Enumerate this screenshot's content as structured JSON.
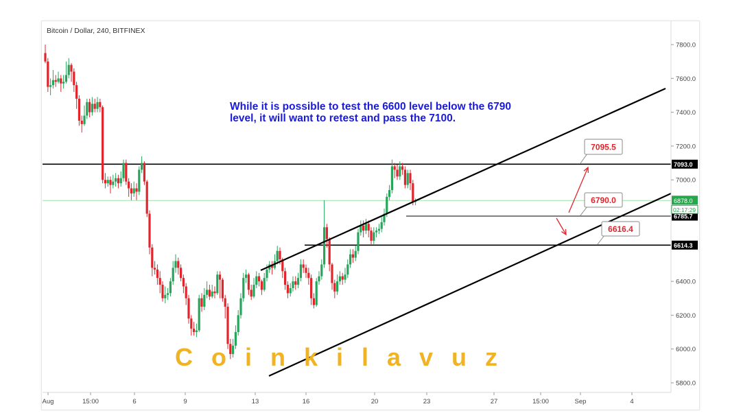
{
  "header": {
    "title": "Bitcoin / Dollar, 240, BITFINEX"
  },
  "annotation": {
    "line1": "While it is possible to test the 6600 level below the 6790",
    "line2": "level, it will want to retest and pass the 7100."
  },
  "watermark": {
    "text": "Coinkilavuz"
  },
  "colors": {
    "up": "#26a65b",
    "down": "#e0262c",
    "trendline": "#000000",
    "current_price_line": "#9fe0a8",
    "callout_text": "#e0262c",
    "annotation": "#1a1adb",
    "watermark": "#f0b323"
  },
  "chart_data": {
    "type": "candlestick",
    "title": "Bitcoin / Dollar, 240, BITFINEX",
    "ylim": [
      5750,
      7850
    ],
    "y_ticks": [
      "7800.0",
      "7600.0",
      "7400.0",
      "7200.0",
      "7000.0",
      "6400.0",
      "6200.0",
      "6000.0",
      "5800.0"
    ],
    "x_ticks": [
      "Aug",
      "15:00",
      "6",
      "9",
      "13",
      "16",
      "20",
      "23",
      "27",
      "15:00",
      "Sep",
      "4"
    ],
    "current_price": {
      "value": 6878.0,
      "label": "6878.0",
      "countdown": "02:17:29"
    },
    "horizontal_levels": [
      {
        "value": 7093.0,
        "label": "7093.0"
      },
      {
        "value": 6785.7,
        "label": "6785.7"
      },
      {
        "value": 6614.3,
        "label": "6614.3"
      }
    ],
    "callouts": [
      {
        "label": "7095.5",
        "value": 7095.5
      },
      {
        "label": "6790.0",
        "value": 6790.0
      },
      {
        "label": "6616.4",
        "value": 6616.4
      }
    ],
    "channel": {
      "upper": [
        [
          -10,
          6460
        ],
        [
          236,
          7545
        ]
      ],
      "lower": [
        [
          -10,
          5845
        ],
        [
          251,
          6925
        ]
      ]
    },
    "arrows": [
      {
        "from": [
          187,
          6810
        ],
        "to": [
          197,
          7085
        ],
        "direction": "up"
      },
      {
        "from": [
          185,
          6780
        ],
        "to": [
          190,
          6680
        ],
        "direction": "down"
      }
    ],
    "bars": [
      [
        7750,
        7700,
        7800,
        7690
      ],
      [
        7700,
        7550,
        7720,
        7520
      ],
      [
        7550,
        7560,
        7600,
        7500
      ],
      [
        7560,
        7590,
        7650,
        7540
      ],
      [
        7590,
        7580,
        7620,
        7550
      ],
      [
        7580,
        7600,
        7640,
        7570
      ],
      [
        7600,
        7570,
        7620,
        7520
      ],
      [
        7570,
        7580,
        7620,
        7540
      ],
      [
        7580,
        7620,
        7700,
        7570
      ],
      [
        7620,
        7680,
        7720,
        7600
      ],
      [
        7680,
        7640,
        7690,
        7580
      ],
      [
        7640,
        7560,
        7660,
        7520
      ],
      [
        7560,
        7480,
        7580,
        7420
      ],
      [
        7480,
        7350,
        7500,
        7320
      ],
      [
        7350,
        7330,
        7380,
        7280
      ],
      [
        7330,
        7380,
        7440,
        7320
      ],
      [
        7380,
        7460,
        7480,
        7360
      ],
      [
        7460,
        7400,
        7480,
        7370
      ],
      [
        7400,
        7450,
        7490,
        7380
      ],
      [
        7450,
        7420,
        7480,
        7400
      ],
      [
        7420,
        7460,
        7490,
        7400
      ],
      [
        7460,
        7430,
        7480,
        7400
      ],
      [
        7430,
        7000,
        7440,
        6980
      ],
      [
        7000,
        6980,
        7040,
        6950
      ],
      [
        6980,
        7000,
        7020,
        6960
      ],
      [
        7000,
        6970,
        7020,
        6920
      ],
      [
        6970,
        6990,
        7030,
        6950
      ],
      [
        6990,
        7010,
        7040,
        6960
      ],
      [
        7010,
        6980,
        7030,
        6950
      ],
      [
        6980,
        7010,
        7050,
        6960
      ],
      [
        7010,
        7100,
        7120,
        6990
      ],
      [
        7100,
        6990,
        7120,
        6970
      ],
      [
        6990,
        6950,
        7010,
        6900
      ],
      [
        6950,
        6920,
        6980,
        6880
      ],
      [
        6920,
        6950,
        6990,
        6900
      ],
      [
        6950,
        6930,
        6980,
        6880
      ],
      [
        6930,
        7060,
        7080,
        6910
      ],
      [
        7060,
        7100,
        7140,
        7040
      ],
      [
        7100,
        6990,
        7110,
        6970
      ],
      [
        6990,
        6800,
        7000,
        6780
      ],
      [
        6800,
        6600,
        6820,
        6560
      ],
      [
        6600,
        6480,
        6620,
        6430
      ],
      [
        6480,
        6470,
        6520,
        6440
      ],
      [
        6470,
        6420,
        6500,
        6380
      ],
      [
        6420,
        6380,
        6460,
        6330
      ],
      [
        6380,
        6300,
        6400,
        6280
      ],
      [
        6300,
        6320,
        6370,
        6270
      ],
      [
        6320,
        6330,
        6360,
        6290
      ],
      [
        6330,
        6400,
        6420,
        6310
      ],
      [
        6400,
        6480,
        6520,
        6380
      ],
      [
        6480,
        6520,
        6560,
        6450
      ],
      [
        6520,
        6480,
        6540,
        6440
      ],
      [
        6480,
        6420,
        6500,
        6400
      ],
      [
        6420,
        6370,
        6440,
        6330
      ],
      [
        6370,
        6300,
        6390,
        6260
      ],
      [
        6300,
        6180,
        6320,
        6150
      ],
      [
        6180,
        6120,
        6200,
        6080
      ],
      [
        6120,
        6100,
        6160,
        6080
      ],
      [
        6100,
        6110,
        6150,
        6070
      ],
      [
        6110,
        6300,
        6320,
        6100
      ],
      [
        6300,
        6250,
        6330,
        6220
      ],
      [
        6250,
        6320,
        6360,
        6230
      ],
      [
        6320,
        6350,
        6400,
        6300
      ],
      [
        6350,
        6310,
        6380,
        6290
      ],
      [
        6310,
        6340,
        6380,
        6300
      ],
      [
        6340,
        6330,
        6370,
        6300
      ],
      [
        6330,
        6440,
        6460,
        6320
      ],
      [
        6440,
        6410,
        6460,
        6300
      ],
      [
        6410,
        6300,
        6420,
        6280
      ],
      [
        6300,
        6250,
        6320,
        6180
      ],
      [
        6250,
        6030,
        6270,
        6000
      ],
      [
        6030,
        5970,
        6060,
        5940
      ],
      [
        5970,
        6020,
        6060,
        5950
      ],
      [
        6020,
        6100,
        6140,
        6000
      ],
      [
        6100,
        6200,
        6230,
        6080
      ],
      [
        6200,
        6300,
        6330,
        6180
      ],
      [
        6300,
        6420,
        6450,
        6280
      ],
      [
        6420,
        6440,
        6470,
        6390
      ],
      [
        6440,
        6350,
        6450,
        6320
      ],
      [
        6350,
        6310,
        6380,
        6290
      ],
      [
        6310,
        6380,
        6420,
        6300
      ],
      [
        6380,
        6430,
        6460,
        6360
      ],
      [
        6430,
        6400,
        6450,
        6370
      ],
      [
        6400,
        6350,
        6410,
        6320
      ],
      [
        6350,
        6420,
        6450,
        6340
      ],
      [
        6420,
        6470,
        6500,
        6400
      ],
      [
        6470,
        6500,
        6520,
        6450
      ],
      [
        6500,
        6480,
        6520,
        6440
      ],
      [
        6480,
        6520,
        6560,
        6470
      ],
      [
        6520,
        6580,
        6610,
        6500
      ],
      [
        6580,
        6530,
        6600,
        6500
      ],
      [
        6530,
        6460,
        6540,
        6420
      ],
      [
        6460,
        6380,
        6480,
        6350
      ],
      [
        6380,
        6330,
        6400,
        6300
      ],
      [
        6330,
        6360,
        6390,
        6310
      ],
      [
        6360,
        6400,
        6430,
        6340
      ],
      [
        6400,
        6380,
        6430,
        6350
      ],
      [
        6380,
        6420,
        6450,
        6360
      ],
      [
        6420,
        6500,
        6530,
        6400
      ],
      [
        6500,
        6480,
        6530,
        6450
      ],
      [
        6480,
        6450,
        6500,
        6420
      ],
      [
        6450,
        6420,
        6480,
        6380
      ],
      [
        6420,
        6300,
        6440,
        6260
      ],
      [
        6300,
        6260,
        6330,
        6240
      ],
      [
        6260,
        6400,
        6420,
        6250
      ],
      [
        6400,
        6430,
        6460,
        6380
      ],
      [
        6430,
        6500,
        6530,
        6410
      ],
      [
        6500,
        6720,
        6880,
        6480
      ],
      [
        6720,
        6650,
        6740,
        6600
      ],
      [
        6650,
        6500,
        6660,
        6460
      ],
      [
        6500,
        6390,
        6510,
        6350
      ],
      [
        6390,
        6340,
        6410,
        6300
      ],
      [
        6340,
        6400,
        6440,
        6320
      ],
      [
        6400,
        6430,
        6460,
        6380
      ],
      [
        6430,
        6410,
        6450,
        6380
      ],
      [
        6410,
        6440,
        6480,
        6390
      ],
      [
        6440,
        6500,
        6530,
        6420
      ],
      [
        6500,
        6560,
        6590,
        6480
      ],
      [
        6560,
        6540,
        6590,
        6510
      ],
      [
        6540,
        6580,
        6610,
        6520
      ],
      [
        6580,
        6690,
        6710,
        6560
      ],
      [
        6690,
        6730,
        6760,
        6670
      ],
      [
        6730,
        6700,
        6760,
        6660
      ],
      [
        6700,
        6740,
        6770,
        6680
      ],
      [
        6740,
        6700,
        6760,
        6660
      ],
      [
        6700,
        6640,
        6720,
        6620
      ],
      [
        6640,
        6690,
        6720,
        6620
      ],
      [
        6690,
        6700,
        6720,
        6660
      ],
      [
        6700,
        6710,
        6740,
        6680
      ],
      [
        6710,
        6750,
        6780,
        6690
      ],
      [
        6750,
        6800,
        6830,
        6730
      ],
      [
        6800,
        6900,
        6920,
        6780
      ],
      [
        6900,
        6940,
        6970,
        6880
      ],
      [
        6940,
        7080,
        7120,
        6920
      ],
      [
        7080,
        7060,
        7100,
        7010
      ],
      [
        7060,
        7020,
        7090,
        7000
      ],
      [
        7020,
        7080,
        7110,
        7000
      ],
      [
        7080,
        7060,
        7100,
        7030
      ],
      [
        7060,
        6970,
        7080,
        6950
      ],
      [
        6970,
        7040,
        7060,
        6950
      ],
      [
        7040,
        6980,
        7060,
        6940
      ],
      [
        6980,
        6870,
        7000,
        6850
      ],
      [
        6870,
        6878,
        6890,
        6850
      ]
    ]
  }
}
